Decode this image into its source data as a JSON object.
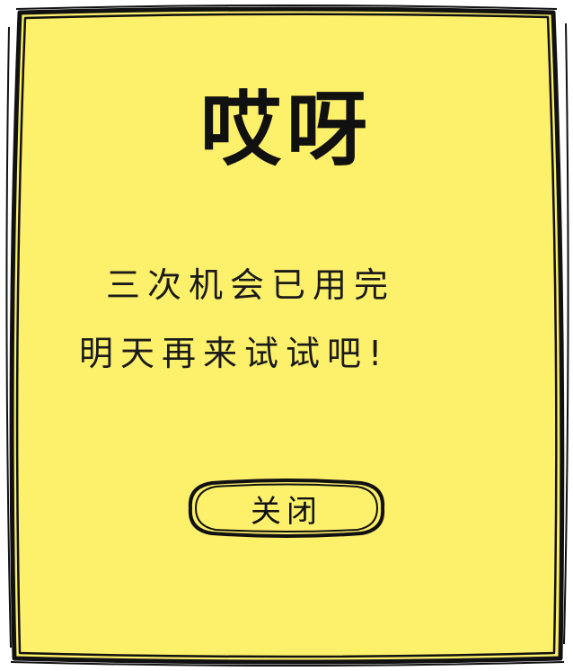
{
  "dialog": {
    "title": "哎呀",
    "message_line1": "三次机会已用完",
    "message_line2": "明天再来试试吧!",
    "close_label": "关闭",
    "colors": {
      "background": "#fdf06a",
      "border": "#111111",
      "text": "#111111"
    }
  }
}
